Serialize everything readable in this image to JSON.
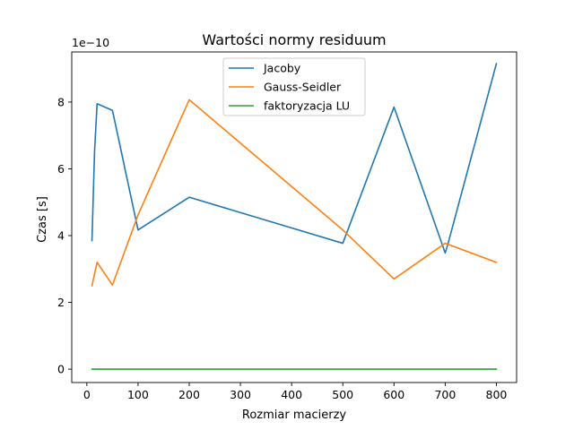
{
  "chart_data": {
    "type": "line",
    "title": "Wartości normy residuum",
    "xlabel": "Rozmiar macierzy",
    "ylabel": "Czas [s]",
    "y_scale_note": "1e−10",
    "xlim": [
      -29.5,
      839.5
    ],
    "ylim": [
      -0.4,
      9.5
    ],
    "x_ticks": [
      0,
      100,
      200,
      300,
      400,
      500,
      600,
      700,
      800
    ],
    "y_ticks": [
      0,
      2,
      4,
      6,
      8
    ],
    "grid": false,
    "legend_position": "top-center",
    "series": [
      {
        "name": "Jacoby",
        "color": "#1f77b4",
        "x": [
          10,
          15,
          20,
          50,
          100,
          200,
          500,
          600,
          700,
          705,
          800
        ],
        "y": [
          3.85,
          6.5,
          7.95,
          7.75,
          4.17,
          5.15,
          3.77,
          7.85,
          3.48,
          3.73,
          9.15
        ]
      },
      {
        "name": "Gauss-Seidler",
        "color": "#ff7f0e",
        "x": [
          10,
          20,
          50,
          100,
          200,
          500,
          600,
          700,
          800
        ],
        "y": [
          2.5,
          3.2,
          2.52,
          4.62,
          8.07,
          4.17,
          2.7,
          3.77,
          3.2
        ]
      },
      {
        "name": "faktoryzacja LU",
        "color": "#2ca02c",
        "x": [
          10,
          20,
          50,
          100,
          200,
          500,
          600,
          700,
          800
        ],
        "y": [
          0.001,
          0.001,
          0.001,
          0.001,
          0.001,
          0.001,
          0.001,
          0.001,
          0.001
        ]
      }
    ]
  }
}
